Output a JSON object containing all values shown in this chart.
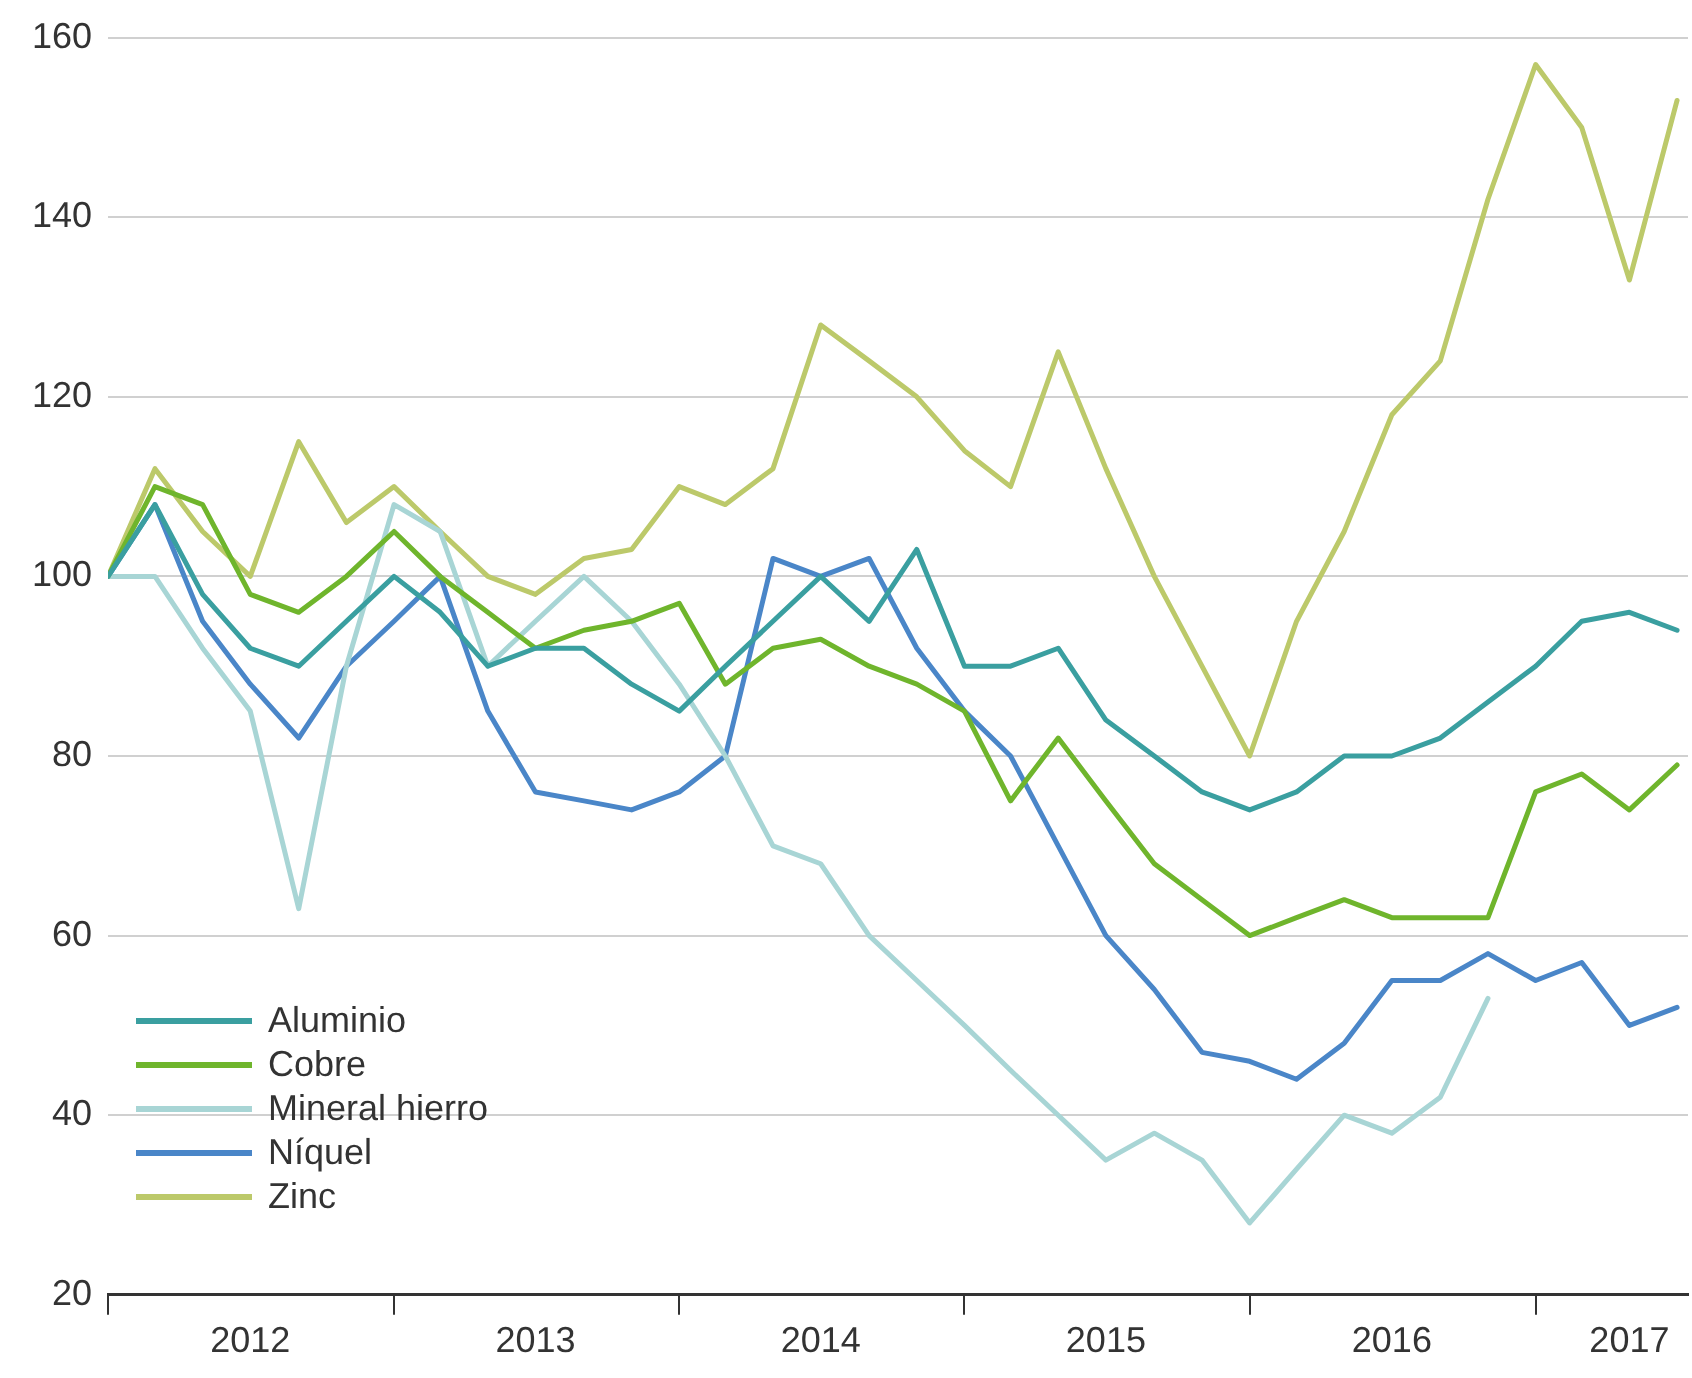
{
  "chart_data": {
    "type": "line",
    "x": [
      "2012-01-01",
      "2012-03-01",
      "2012-05-01",
      "2012-07-01",
      "2012-09-01",
      "2012-11-01",
      "2013-01-01",
      "2013-03-01",
      "2013-05-01",
      "2013-07-01",
      "2013-09-01",
      "2013-11-01",
      "2014-01-01",
      "2014-03-01",
      "2014-05-01",
      "2014-07-01",
      "2014-09-01",
      "2014-11-01",
      "2015-01-01",
      "2015-03-01",
      "2015-05-01",
      "2015-07-01",
      "2015-09-01",
      "2015-11-01",
      "2016-01-01",
      "2016-03-01",
      "2016-05-01",
      "2016-07-01",
      "2016-09-01",
      "2016-11-01",
      "2017-01-01",
      "2017-03-01",
      "2017-05-01",
      "2017-07-01"
    ],
    "series": [
      {
        "name": "Aluminio",
        "color": "#3a9fa0",
        "values": [
          100,
          108,
          98,
          92,
          90,
          95,
          100,
          96,
          90,
          92,
          92,
          88,
          85,
          90,
          95,
          100,
          95,
          103,
          90,
          90,
          92,
          84,
          80,
          76,
          74,
          76,
          80,
          80,
          82,
          86,
          90,
          95,
          96,
          94
        ]
      },
      {
        "name": "Cobre",
        "color": "#6fb52c",
        "values": [
          100,
          110,
          108,
          98,
          96,
          100,
          105,
          100,
          96,
          92,
          94,
          95,
          97,
          88,
          92,
          93,
          90,
          88,
          85,
          75,
          82,
          75,
          68,
          64,
          60,
          62,
          64,
          62,
          62,
          62,
          76,
          78,
          74,
          79
        ]
      },
      {
        "name": "Mineral hierro",
        "color": "#a8d5d5",
        "values": [
          100,
          100,
          92,
          85,
          63,
          90,
          108,
          105,
          90,
          95,
          100,
          95,
          88,
          80,
          70,
          68,
          60,
          55,
          50,
          45,
          40,
          35,
          38,
          35,
          28,
          34,
          40,
          38,
          42,
          53,
          null,
          null,
          null,
          null
        ]
      },
      {
        "name": "Níquel",
        "color": "#4a86c8",
        "values": [
          100,
          108,
          95,
          88,
          82,
          90,
          95,
          100,
          85,
          76,
          75,
          74,
          76,
          80,
          102,
          100,
          102,
          92,
          85,
          80,
          70,
          60,
          54,
          47,
          46,
          44,
          48,
          55,
          55,
          58,
          55,
          57,
          50,
          52
        ]
      },
      {
        "name": "Zinc",
        "color": "#bcc96a",
        "values": [
          100,
          112,
          105,
          100,
          115,
          106,
          110,
          105,
          100,
          98,
          102,
          103,
          110,
          108,
          112,
          128,
          124,
          120,
          114,
          110,
          125,
          112,
          100,
          90,
          80,
          95,
          105,
          118,
          124,
          142,
          157,
          150,
          133,
          153
        ]
      }
    ],
    "xlim": [
      "2012-01-01",
      "2017-07-15"
    ],
    "xticks": [
      {
        "value": "2012-01-01",
        "label": null
      },
      {
        "value": "2012-07-01",
        "label": "2012"
      },
      {
        "value": "2013-01-01",
        "label": null
      },
      {
        "value": "2013-07-01",
        "label": "2013"
      },
      {
        "value": "2014-01-01",
        "label": null
      },
      {
        "value": "2014-07-01",
        "label": "2014"
      },
      {
        "value": "2015-01-01",
        "label": null
      },
      {
        "value": "2015-07-01",
        "label": "2015"
      },
      {
        "value": "2016-01-01",
        "label": null
      },
      {
        "value": "2016-07-01",
        "label": "2016"
      },
      {
        "value": "2017-01-01",
        "label": null
      },
      {
        "value": "2017-05-01",
        "label": "2017"
      }
    ],
    "ylim": [
      20,
      160
    ],
    "yticks": [
      20,
      40,
      60,
      80,
      100,
      120,
      140,
      160
    ],
    "grid": "y",
    "legend": "bottom left",
    "marker": "none",
    "line_style": "solid"
  }
}
